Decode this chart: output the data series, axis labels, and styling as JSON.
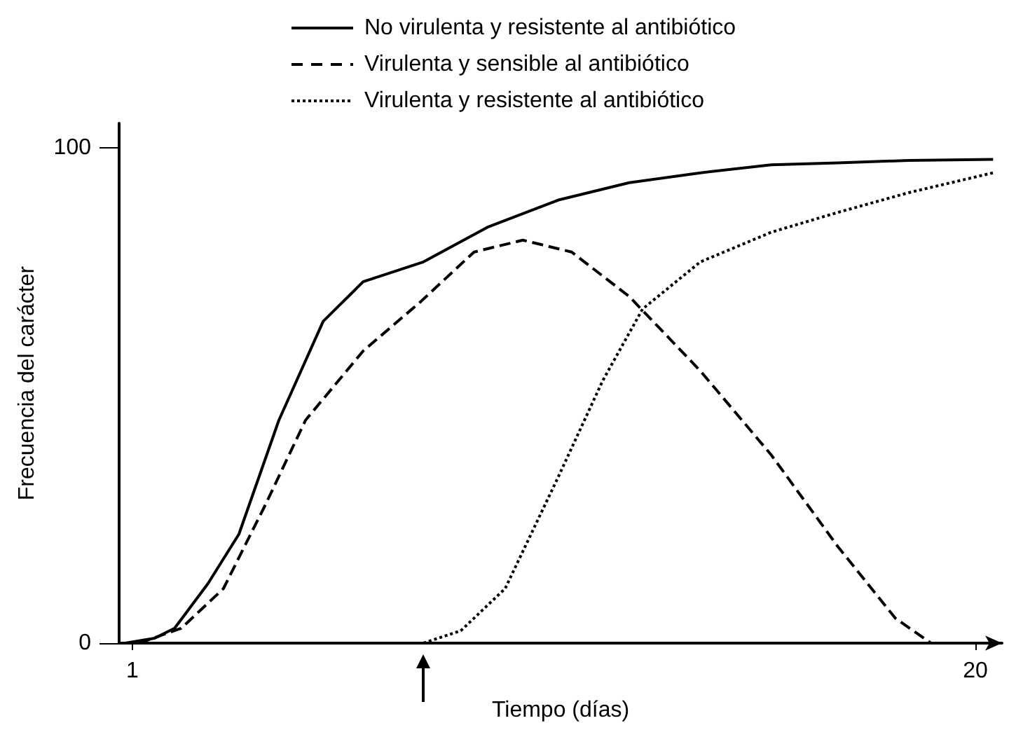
{
  "chart_data": {
    "type": "line",
    "xlabel": "Tiempo (días)",
    "ylabel": "Frecuencia del carácter",
    "xlim": [
      0.7,
      20.6
    ],
    "xticks": [
      1,
      20
    ],
    "ylim": [
      0,
      105
    ],
    "yticks": [
      0,
      100
    ],
    "grid": false,
    "legend": "top",
    "marker": "none",
    "series": [
      {
        "name": "No virulenta y resistente al antibiótico",
        "color": "#000000",
        "line_style": "solid",
        "x": [
          0.84,
          1.5,
          1.95,
          2.7,
          3.4,
          4.3,
          5.3,
          6.2,
          7.56,
          9,
          10.6,
          12.2,
          13.8,
          15.4,
          16.9,
          18.5,
          20.4
        ],
        "values": [
          0,
          1,
          3,
          12,
          22,
          45,
          65,
          73,
          77,
          84,
          89.5,
          93,
          95,
          96.6,
          97,
          97.5,
          97.7
        ]
      },
      {
        "name": "Virulenta y sensible al antibiótico",
        "color": "#000000",
        "line_style": "dashed",
        "x": [
          1.15,
          2.1,
          3.05,
          4,
          4.9,
          6.2,
          7.5,
          8.7,
          9.8,
          10.9,
          12.2,
          13.8,
          15.4,
          16.9,
          18.2,
          19
        ],
        "values": [
          0,
          3,
          11,
          28,
          45,
          59,
          69,
          79,
          81.4,
          79,
          70,
          55,
          38,
          19.5,
          5,
          0
        ]
      },
      {
        "name": "Virulenta y resistente al antibiótico",
        "color": "#000000",
        "line_style": "dotted",
        "x": [
          7.56,
          8.4,
          9.4,
          10.6,
          11.6,
          12.5,
          13.8,
          15.4,
          16.9,
          18.5,
          20.4
        ],
        "values": [
          0,
          2.5,
          11,
          33.6,
          53,
          67.5,
          77,
          83,
          87,
          91,
          95
        ]
      }
    ]
  }
}
